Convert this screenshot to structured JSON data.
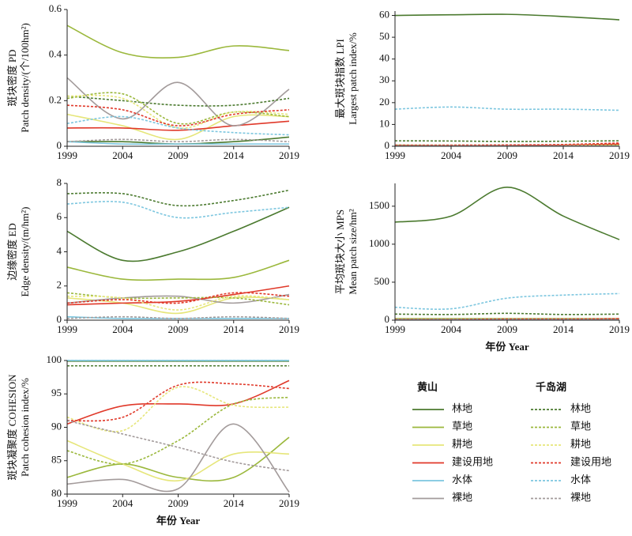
{
  "chart_data": [
    {
      "type": "line",
      "ylabel": [
        "斑块密度 PD",
        "Patch density/(个/100hm²)"
      ],
      "x": [
        1999,
        2004,
        2009,
        2014,
        2019
      ],
      "xlim": [
        1999,
        2019
      ],
      "xticks": [
        1999,
        2004,
        2009,
        2014,
        2019
      ],
      "ylim": [
        0,
        0.6
      ],
      "yticks": [
        0,
        0.2,
        0.4,
        0.6
      ],
      "series": [
        {
          "name": "林地",
          "group": "黄山",
          "style": "solid",
          "color": "#4b7a2f",
          "values": [
            0.02,
            0.02,
            0.01,
            0.02,
            0.04
          ]
        },
        {
          "name": "草地",
          "group": "黄山",
          "style": "solid",
          "color": "#9bb83c",
          "values": [
            0.53,
            0.41,
            0.39,
            0.44,
            0.42
          ]
        },
        {
          "name": "耕地",
          "group": "黄山",
          "style": "solid",
          "color": "#e6e67a",
          "values": [
            0.14,
            0.09,
            0.03,
            0.13,
            0.13
          ]
        },
        {
          "name": "建设用地",
          "group": "黄山",
          "style": "solid",
          "color": "#e0392a",
          "values": [
            0.08,
            0.08,
            0.07,
            0.09,
            0.11
          ]
        },
        {
          "name": "水体",
          "group": "黄山",
          "style": "solid",
          "color": "#7cc6df",
          "values": [
            0.02,
            0.01,
            0.01,
            0.01,
            0.01
          ]
        },
        {
          "name": "裸地",
          "group": "黄山",
          "style": "solid",
          "color": "#a39b9b",
          "values": [
            0.3,
            0.12,
            0.28,
            0.09,
            0.25
          ]
        },
        {
          "name": "林地",
          "group": "千岛湖",
          "style": "dashed",
          "color": "#4b7a2f",
          "values": [
            0.22,
            0.2,
            0.18,
            0.18,
            0.21
          ]
        },
        {
          "name": "草地",
          "group": "千岛湖",
          "style": "dashed",
          "color": "#9bb83c",
          "values": [
            0.21,
            0.23,
            0.1,
            0.15,
            0.13
          ]
        },
        {
          "name": "耕地",
          "group": "千岛湖",
          "style": "dashed",
          "color": "#e6e67a",
          "values": [
            0.22,
            0.21,
            0.08,
            0.15,
            0.14
          ]
        },
        {
          "name": "建设用地",
          "group": "千岛湖",
          "style": "dashed",
          "color": "#e0392a",
          "values": [
            0.18,
            0.16,
            0.09,
            0.14,
            0.16
          ]
        },
        {
          "name": "水体",
          "group": "千岛湖",
          "style": "dashed",
          "color": "#7cc6df",
          "values": [
            0.1,
            0.13,
            0.08,
            0.06,
            0.05
          ]
        },
        {
          "name": "裸地",
          "group": "千岛湖",
          "style": "dashed",
          "color": "#a39b9b",
          "values": [
            0.02,
            0.03,
            0.02,
            0.03,
            0.02
          ]
        }
      ]
    },
    {
      "type": "line",
      "ylabel": [
        "最大斑块指数 LPI",
        "Largest patch index/%"
      ],
      "x": [
        1999,
        2004,
        2009,
        2014,
        2019
      ],
      "xlim": [
        1999,
        2019
      ],
      "xticks": [
        1999,
        2004,
        2009,
        2014,
        2019
      ],
      "ylim": [
        0,
        62
      ],
      "yticks": [
        0,
        10,
        20,
        30,
        40,
        50,
        60
      ],
      "series": [
        {
          "name": "林地",
          "group": "黄山",
          "style": "solid",
          "color": "#4b7a2f",
          "values": [
            60,
            60.3,
            60.5,
            59.5,
            58
          ]
        },
        {
          "name": "草地",
          "group": "黄山",
          "style": "solid",
          "color": "#9bb83c",
          "values": [
            0.5,
            0.3,
            0.3,
            0.4,
            0.5
          ]
        },
        {
          "name": "耕地",
          "group": "黄山",
          "style": "solid",
          "color": "#e6e67a",
          "values": [
            0.1,
            0.1,
            0.1,
            0.1,
            0.1
          ]
        },
        {
          "name": "建设用地",
          "group": "黄山",
          "style": "solid",
          "color": "#e0392a",
          "values": [
            0.2,
            0.2,
            0.3,
            0.5,
            1
          ]
        },
        {
          "name": "水体",
          "group": "黄山",
          "style": "solid",
          "color": "#7cc6df",
          "values": [
            0.1,
            0.1,
            0.1,
            0.1,
            0.1
          ]
        },
        {
          "name": "裸地",
          "group": "黄山",
          "style": "solid",
          "color": "#a39b9b",
          "values": [
            0.1,
            0.1,
            0.1,
            0.1,
            0.1
          ]
        },
        {
          "name": "林地",
          "group": "千岛湖",
          "style": "dashed",
          "color": "#4b7a2f",
          "values": [
            2.5,
            2.4,
            2.2,
            2.3,
            2.5
          ]
        },
        {
          "name": "草地",
          "group": "千岛湖",
          "style": "dashed",
          "color": "#9bb83c",
          "values": [
            0.5,
            0.5,
            0.5,
            0.5,
            0.5
          ]
        },
        {
          "name": "耕地",
          "group": "千岛湖",
          "style": "dashed",
          "color": "#e6e67a",
          "values": [
            0.4,
            0.4,
            0.4,
            0.4,
            0.4
          ]
        },
        {
          "name": "建设用地",
          "group": "千岛湖",
          "style": "dashed",
          "color": "#e0392a",
          "values": [
            0.5,
            0.5,
            0.6,
            0.8,
            1.5
          ]
        },
        {
          "name": "水体",
          "group": "千岛湖",
          "style": "dashed",
          "color": "#7cc6df",
          "values": [
            17,
            18,
            17,
            17,
            16.5
          ]
        },
        {
          "name": "裸地",
          "group": "千岛湖",
          "style": "dashed",
          "color": "#a39b9b",
          "values": [
            0.1,
            0.1,
            0.1,
            0.1,
            0.1
          ]
        }
      ]
    },
    {
      "type": "line",
      "ylabel": [
        "边缘密度 ED",
        "Edge density/(m/hm²)"
      ],
      "x": [
        1999,
        2004,
        2009,
        2014,
        2019
      ],
      "xlim": [
        1999,
        2019
      ],
      "xticks": [
        1999,
        2004,
        2009,
        2014,
        2019
      ],
      "ylim": [
        0,
        8
      ],
      "yticks": [
        0,
        2,
        4,
        6,
        8
      ],
      "series": [
        {
          "name": "林地",
          "group": "黄山",
          "style": "solid",
          "color": "#4b7a2f",
          "values": [
            5.2,
            3.5,
            4.0,
            5.2,
            6.6
          ]
        },
        {
          "name": "草地",
          "group": "黄山",
          "style": "solid",
          "color": "#9bb83c",
          "values": [
            3.1,
            2.4,
            2.4,
            2.5,
            3.5
          ]
        },
        {
          "name": "耕地",
          "group": "黄山",
          "style": "solid",
          "color": "#e6e67a",
          "values": [
            1.3,
            1.0,
            0.4,
            1.3,
            1.2
          ]
        },
        {
          "name": "建设用地",
          "group": "黄山",
          "style": "solid",
          "color": "#e0392a",
          "values": [
            0.9,
            1.0,
            1.1,
            1.5,
            2.0
          ]
        },
        {
          "name": "水体",
          "group": "黄山",
          "style": "solid",
          "color": "#7cc6df",
          "values": [
            0.2,
            0.1,
            0.1,
            0.1,
            0.1
          ]
        },
        {
          "name": "裸地",
          "group": "黄山",
          "style": "solid",
          "color": "#a39b9b",
          "values": [
            1.0,
            1.3,
            1.4,
            1.0,
            1.5
          ]
        },
        {
          "name": "林地",
          "group": "千岛湖",
          "style": "dashed",
          "color": "#4b7a2f",
          "values": [
            7.4,
            7.4,
            6.7,
            7.0,
            7.6
          ]
        },
        {
          "name": "草地",
          "group": "千岛湖",
          "style": "dashed",
          "color": "#9bb83c",
          "values": [
            1.6,
            1.3,
            1.3,
            1.3,
            0.9
          ]
        },
        {
          "name": "耕地",
          "group": "千岛湖",
          "style": "dashed",
          "color": "#e6e67a",
          "values": [
            1.4,
            1.3,
            0.6,
            1.4,
            1.2
          ]
        },
        {
          "name": "建设用地",
          "group": "千岛湖",
          "style": "dashed",
          "color": "#e0392a",
          "values": [
            1.0,
            1.2,
            1.0,
            1.6,
            1.4
          ]
        },
        {
          "name": "水体",
          "group": "千岛湖",
          "style": "dashed",
          "color": "#7cc6df",
          "values": [
            6.8,
            6.9,
            6.0,
            6.3,
            6.6
          ]
        },
        {
          "name": "裸地",
          "group": "千岛湖",
          "style": "dashed",
          "color": "#a39b9b",
          "values": [
            0.1,
            0.2,
            0.1,
            0.2,
            0.1
          ]
        }
      ]
    },
    {
      "type": "line",
      "ylabel": [
        "平均斑块大小 MPS",
        "Mean patch size/hm²"
      ],
      "xlabel": "年份  Year",
      "x": [
        1999,
        2004,
        2009,
        2014,
        2019
      ],
      "xlim": [
        1999,
        2019
      ],
      "xticks": [
        1999,
        2004,
        2009,
        2014,
        2019
      ],
      "ylim": [
        0,
        1800
      ],
      "yticks": [
        0,
        500,
        1000,
        1500
      ],
      "series": [
        {
          "name": "林地",
          "group": "黄山",
          "style": "solid",
          "color": "#4b7a2f",
          "values": [
            1290,
            1370,
            1750,
            1370,
            1060
          ]
        },
        {
          "name": "草地",
          "group": "黄山",
          "style": "solid",
          "color": "#9bb83c",
          "values": [
            20,
            20,
            20,
            20,
            20
          ]
        },
        {
          "name": "耕地",
          "group": "黄山",
          "style": "solid",
          "color": "#e6e67a",
          "values": [
            10,
            10,
            10,
            10,
            10
          ]
        },
        {
          "name": "建设用地",
          "group": "黄山",
          "style": "solid",
          "color": "#e0392a",
          "values": [
            10,
            10,
            10,
            10,
            15
          ]
        },
        {
          "name": "水体",
          "group": "黄山",
          "style": "solid",
          "color": "#7cc6df",
          "values": [
            10,
            10,
            10,
            10,
            10
          ]
        },
        {
          "name": "裸地",
          "group": "黄山",
          "style": "solid",
          "color": "#a39b9b",
          "values": [
            5,
            5,
            5,
            5,
            5
          ]
        },
        {
          "name": "林地",
          "group": "千岛湖",
          "style": "dashed",
          "color": "#4b7a2f",
          "values": [
            80,
            75,
            90,
            75,
            80
          ]
        },
        {
          "name": "草地",
          "group": "千岛湖",
          "style": "dashed",
          "color": "#9bb83c",
          "values": [
            10,
            10,
            10,
            10,
            10
          ]
        },
        {
          "name": "耕地",
          "group": "千岛湖",
          "style": "dashed",
          "color": "#e6e67a",
          "values": [
            10,
            10,
            10,
            10,
            10
          ]
        },
        {
          "name": "建设用地",
          "group": "千岛湖",
          "style": "dashed",
          "color": "#e0392a",
          "values": [
            10,
            10,
            15,
            15,
            20
          ]
        },
        {
          "name": "水体",
          "group": "千岛湖",
          "style": "dashed",
          "color": "#7cc6df",
          "values": [
            170,
            150,
            290,
            330,
            350
          ]
        },
        {
          "name": "裸地",
          "group": "千岛湖",
          "style": "dashed",
          "color": "#a39b9b",
          "values": [
            5,
            5,
            5,
            5,
            5
          ]
        }
      ]
    },
    {
      "type": "line",
      "ylabel": [
        "斑块凝聚度 COHESION",
        "Patch cohesion index/%"
      ],
      "xlabel": "年份  Year",
      "x": [
        1999,
        2004,
        2009,
        2014,
        2019
      ],
      "xlim": [
        1999,
        2019
      ],
      "xticks": [
        1999,
        2004,
        2009,
        2014,
        2019
      ],
      "ylim": [
        80,
        100
      ],
      "yticks": [
        80,
        85,
        90,
        95,
        100
      ],
      "series": [
        {
          "name": "林地",
          "group": "黄山",
          "style": "solid",
          "color": "#4b7a2f",
          "values": [
            99.9,
            99.9,
            99.9,
            99.9,
            99.9
          ]
        },
        {
          "name": "草地",
          "group": "黄山",
          "style": "solid",
          "color": "#9bb83c",
          "values": [
            82.5,
            84.5,
            82.5,
            82.5,
            88.5
          ]
        },
        {
          "name": "耕地",
          "group": "黄山",
          "style": "solid",
          "color": "#e6e67a",
          "values": [
            88,
            84.5,
            82,
            86,
            86
          ]
        },
        {
          "name": "建设用地",
          "group": "黄山",
          "style": "solid",
          "color": "#e0392a",
          "values": [
            90.5,
            93.2,
            93.5,
            93.5,
            97
          ]
        },
        {
          "name": "水体",
          "group": "黄山",
          "style": "solid",
          "color": "#7cc6df",
          "values": [
            100,
            100,
            100,
            100,
            100
          ]
        },
        {
          "name": "裸地",
          "group": "黄山",
          "style": "solid",
          "color": "#a39b9b",
          "values": [
            81.5,
            82.2,
            80.8,
            90.5,
            80.3
          ]
        },
        {
          "name": "林地",
          "group": "千岛湖",
          "style": "dashed",
          "color": "#4b7a2f",
          "values": [
            99.2,
            99.2,
            99.2,
            99.2,
            99.2
          ]
        },
        {
          "name": "草地",
          "group": "千岛湖",
          "style": "dashed",
          "color": "#9bb83c",
          "values": [
            86.5,
            84.5,
            88,
            93.5,
            94.5
          ]
        },
        {
          "name": "耕地",
          "group": "千岛湖",
          "style": "dashed",
          "color": "#e6e67a",
          "values": [
            91.5,
            89.5,
            96,
            93.3,
            93
          ]
        },
        {
          "name": "建设用地",
          "group": "千岛湖",
          "style": "dashed",
          "color": "#e0392a",
          "values": [
            91,
            91.5,
            96.3,
            96.5,
            95.8
          ]
        },
        {
          "name": "水体",
          "group": "千岛湖",
          "style": "dashed",
          "color": "#7cc6df",
          "values": [
            100,
            100,
            100,
            100,
            100
          ]
        },
        {
          "name": "裸地",
          "group": "千岛湖",
          "style": "dashed",
          "color": "#a39b9b",
          "values": [
            91,
            89,
            87,
            84.8,
            83.5
          ]
        }
      ]
    }
  ]
}
